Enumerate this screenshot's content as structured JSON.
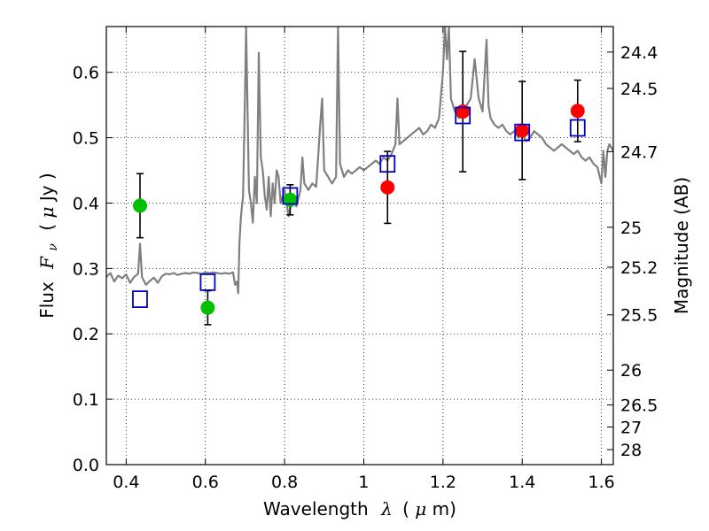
{
  "chart_data": {
    "type": "scatter",
    "xlabel": "Wavelength",
    "xlabel_symbol": "λ",
    "xlabel_unit_open": "(",
    "xlabel_unit_mu": "μ",
    "xlabel_unit_rest": "m)",
    "ylabel": "Flux",
    "ylabel_symbol": "F",
    "ylabel_symbol_sub": "ν",
    "ylabel_unit_open": "( ",
    "ylabel_unit_mu": "μ",
    "ylabel_unit_rest": "Jy )",
    "y2label": "Magnitude (AB)",
    "xlim": [
      0.35,
      1.63
    ],
    "ylim": [
      0.0,
      0.67
    ],
    "x_ticks": [
      {
        "v": 0.4,
        "label": "0.4"
      },
      {
        "v": 0.6,
        "label": "0.6"
      },
      {
        "v": 0.8,
        "label": "0.8"
      },
      {
        "v": 1.0,
        "label": "1"
      },
      {
        "v": 1.2,
        "label": "1.2"
      },
      {
        "v": 1.4,
        "label": "1.4"
      },
      {
        "v": 1.6,
        "label": "1.6"
      }
    ],
    "y_ticks": [
      {
        "v": 0.0,
        "label": "0.0"
      },
      {
        "v": 0.1,
        "label": "0.1"
      },
      {
        "v": 0.2,
        "label": "0.2"
      },
      {
        "v": 0.3,
        "label": "0.3"
      },
      {
        "v": 0.4,
        "label": "0.4"
      },
      {
        "v": 0.5,
        "label": "0.5"
      },
      {
        "v": 0.6,
        "label": "0.6"
      }
    ],
    "y2_ticks": [
      {
        "mag": 24.4,
        "label": "24.4"
      },
      {
        "mag": 24.5,
        "label": "24.5"
      },
      {
        "mag": 24.7,
        "label": "24.7"
      },
      {
        "mag": 25.0,
        "label": "25"
      },
      {
        "mag": 25.2,
        "label": "25.2"
      },
      {
        "mag": 25.5,
        "label": "25.5"
      },
      {
        "mag": 26.0,
        "label": "26"
      },
      {
        "mag": 26.5,
        "label": "26.5"
      },
      {
        "mag": 27.0,
        "label": "27"
      },
      {
        "mag": 28.0,
        "label": "28"
      }
    ],
    "grid": true,
    "grid_style": "dotted",
    "series": [
      {
        "kind": "points-with-errorbars",
        "color": "#00c000",
        "marker": "circle",
        "points": [
          {
            "x": 0.435,
            "y": 0.396,
            "err": 0.049
          },
          {
            "x": 0.606,
            "y": 0.24,
            "err": 0.026
          },
          {
            "x": 0.814,
            "y": 0.405,
            "err": 0.023
          }
        ]
      },
      {
        "kind": "points-with-errorbars",
        "color": "#ff0000",
        "marker": "circle",
        "points": [
          {
            "x": 1.06,
            "y": 0.424,
            "err": 0.055
          },
          {
            "x": 1.25,
            "y": 0.54,
            "err": 0.092
          },
          {
            "x": 1.4,
            "y": 0.511,
            "err": 0.075
          },
          {
            "x": 1.54,
            "y": 0.541,
            "err": 0.047
          }
        ]
      },
      {
        "kind": "model-photometry",
        "color": "#0000cc",
        "marker": "open-square",
        "points": [
          {
            "x": 0.435,
            "y": 0.253
          },
          {
            "x": 0.606,
            "y": 0.279
          },
          {
            "x": 0.814,
            "y": 0.411
          },
          {
            "x": 1.06,
            "y": 0.46
          },
          {
            "x": 1.25,
            "y": 0.534
          },
          {
            "x": 1.4,
            "y": 0.508
          },
          {
            "x": 1.54,
            "y": 0.515
          }
        ]
      },
      {
        "kind": "spectrum",
        "color": "#808080",
        "points": [
          [
            0.35,
            0.287
          ],
          [
            0.36,
            0.293
          ],
          [
            0.37,
            0.28
          ],
          [
            0.38,
            0.289
          ],
          [
            0.39,
            0.285
          ],
          [
            0.4,
            0.291
          ],
          [
            0.41,
            0.278
          ],
          [
            0.42,
            0.287
          ],
          [
            0.43,
            0.292
          ],
          [
            0.435,
            0.338
          ],
          [
            0.44,
            0.287
          ],
          [
            0.45,
            0.275
          ],
          [
            0.46,
            0.281
          ],
          [
            0.47,
            0.286
          ],
          [
            0.48,
            0.278
          ],
          [
            0.49,
            0.288
          ],
          [
            0.5,
            0.292
          ],
          [
            0.51,
            0.291
          ],
          [
            0.52,
            0.293
          ],
          [
            0.53,
            0.29
          ],
          [
            0.54,
            0.292
          ],
          [
            0.55,
            0.293
          ],
          [
            0.56,
            0.292
          ],
          [
            0.57,
            0.294
          ],
          [
            0.58,
            0.293
          ],
          [
            0.59,
            0.292
          ],
          [
            0.6,
            0.294
          ],
          [
            0.61,
            0.293
          ],
          [
            0.62,
            0.294
          ],
          [
            0.63,
            0.293
          ],
          [
            0.64,
            0.292
          ],
          [
            0.65,
            0.293
          ],
          [
            0.66,
            0.292
          ],
          [
            0.67,
            0.294
          ],
          [
            0.675,
            0.275
          ],
          [
            0.68,
            0.28
          ],
          [
            0.683,
            0.262
          ],
          [
            0.686,
            0.34
          ],
          [
            0.69,
            0.38
          ],
          [
            0.695,
            0.41
          ],
          [
            0.7,
            0.56
          ],
          [
            0.703,
            0.67
          ],
          [
            0.706,
            0.56
          ],
          [
            0.71,
            0.42
          ],
          [
            0.715,
            0.4
          ],
          [
            0.72,
            0.37
          ],
          [
            0.725,
            0.44
          ],
          [
            0.73,
            0.4
          ],
          [
            0.735,
            0.63
          ],
          [
            0.74,
            0.47
          ],
          [
            0.745,
            0.45
          ],
          [
            0.75,
            0.41
          ],
          [
            0.755,
            0.39
          ],
          [
            0.76,
            0.44
          ],
          [
            0.765,
            0.38
          ],
          [
            0.77,
            0.43
          ],
          [
            0.775,
            0.4
          ],
          [
            0.78,
            0.45
          ],
          [
            0.785,
            0.44
          ],
          [
            0.79,
            0.4
          ],
          [
            0.8,
            0.42
          ],
          [
            0.81,
            0.38
          ],
          [
            0.82,
            0.41
          ],
          [
            0.83,
            0.395
          ],
          [
            0.84,
            0.42
          ],
          [
            0.845,
            0.47
          ],
          [
            0.85,
            0.43
          ],
          [
            0.86,
            0.42
          ],
          [
            0.87,
            0.43
          ],
          [
            0.88,
            0.425
          ],
          [
            0.89,
            0.52
          ],
          [
            0.895,
            0.56
          ],
          [
            0.9,
            0.45
          ],
          [
            0.91,
            0.44
          ],
          [
            0.92,
            0.43
          ],
          [
            0.93,
            0.44
          ],
          [
            0.935,
            0.67
          ],
          [
            0.94,
            0.46
          ],
          [
            0.95,
            0.44
          ],
          [
            0.96,
            0.45
          ],
          [
            0.97,
            0.445
          ],
          [
            0.98,
            0.45
          ],
          [
            0.99,
            0.455
          ],
          [
            1.0,
            0.45
          ],
          [
            1.01,
            0.455
          ],
          [
            1.02,
            0.46
          ],
          [
            1.03,
            0.465
          ],
          [
            1.04,
            0.46
          ],
          [
            1.05,
            0.47
          ],
          [
            1.06,
            0.465
          ],
          [
            1.07,
            0.475
          ],
          [
            1.08,
            0.49
          ],
          [
            1.085,
            0.56
          ],
          [
            1.09,
            0.49
          ],
          [
            1.1,
            0.495
          ],
          [
            1.11,
            0.5
          ],
          [
            1.12,
            0.505
          ],
          [
            1.13,
            0.51
          ],
          [
            1.14,
            0.515
          ],
          [
            1.15,
            0.505
          ],
          [
            1.16,
            0.51
          ],
          [
            1.17,
            0.52
          ],
          [
            1.18,
            0.515
          ],
          [
            1.19,
            0.53
          ],
          [
            1.2,
            0.6
          ],
          [
            1.205,
            0.67
          ],
          [
            1.21,
            0.62
          ],
          [
            1.215,
            0.67
          ],
          [
            1.22,
            0.56
          ],
          [
            1.23,
            0.54
          ],
          [
            1.24,
            0.53
          ],
          [
            1.25,
            0.54
          ],
          [
            1.26,
            0.55
          ],
          [
            1.27,
            0.56
          ],
          [
            1.28,
            0.62
          ],
          [
            1.29,
            0.56
          ],
          [
            1.3,
            0.54
          ],
          [
            1.31,
            0.65
          ],
          [
            1.315,
            0.55
          ],
          [
            1.32,
            0.53
          ],
          [
            1.33,
            0.52
          ],
          [
            1.34,
            0.515
          ],
          [
            1.35,
            0.52
          ],
          [
            1.36,
            0.51
          ],
          [
            1.37,
            0.505
          ],
          [
            1.38,
            0.51
          ],
          [
            1.39,
            0.5
          ],
          [
            1.4,
            0.505
          ],
          [
            1.41,
            0.495
          ],
          [
            1.42,
            0.5
          ],
          [
            1.43,
            0.51
          ],
          [
            1.44,
            0.505
          ],
          [
            1.45,
            0.5
          ],
          [
            1.46,
            0.49
          ],
          [
            1.47,
            0.485
          ],
          [
            1.48,
            0.48
          ],
          [
            1.49,
            0.485
          ],
          [
            1.5,
            0.49
          ],
          [
            1.51,
            0.485
          ],
          [
            1.52,
            0.48
          ],
          [
            1.53,
            0.475
          ],
          [
            1.54,
            0.48
          ],
          [
            1.55,
            0.47
          ],
          [
            1.56,
            0.465
          ],
          [
            1.57,
            0.47
          ],
          [
            1.58,
            0.46
          ],
          [
            1.59,
            0.455
          ],
          [
            1.6,
            0.43
          ],
          [
            1.605,
            0.48
          ],
          [
            1.61,
            0.44
          ],
          [
            1.615,
            0.48
          ],
          [
            1.62,
            0.49
          ],
          [
            1.63,
            0.48
          ]
        ]
      }
    ]
  }
}
